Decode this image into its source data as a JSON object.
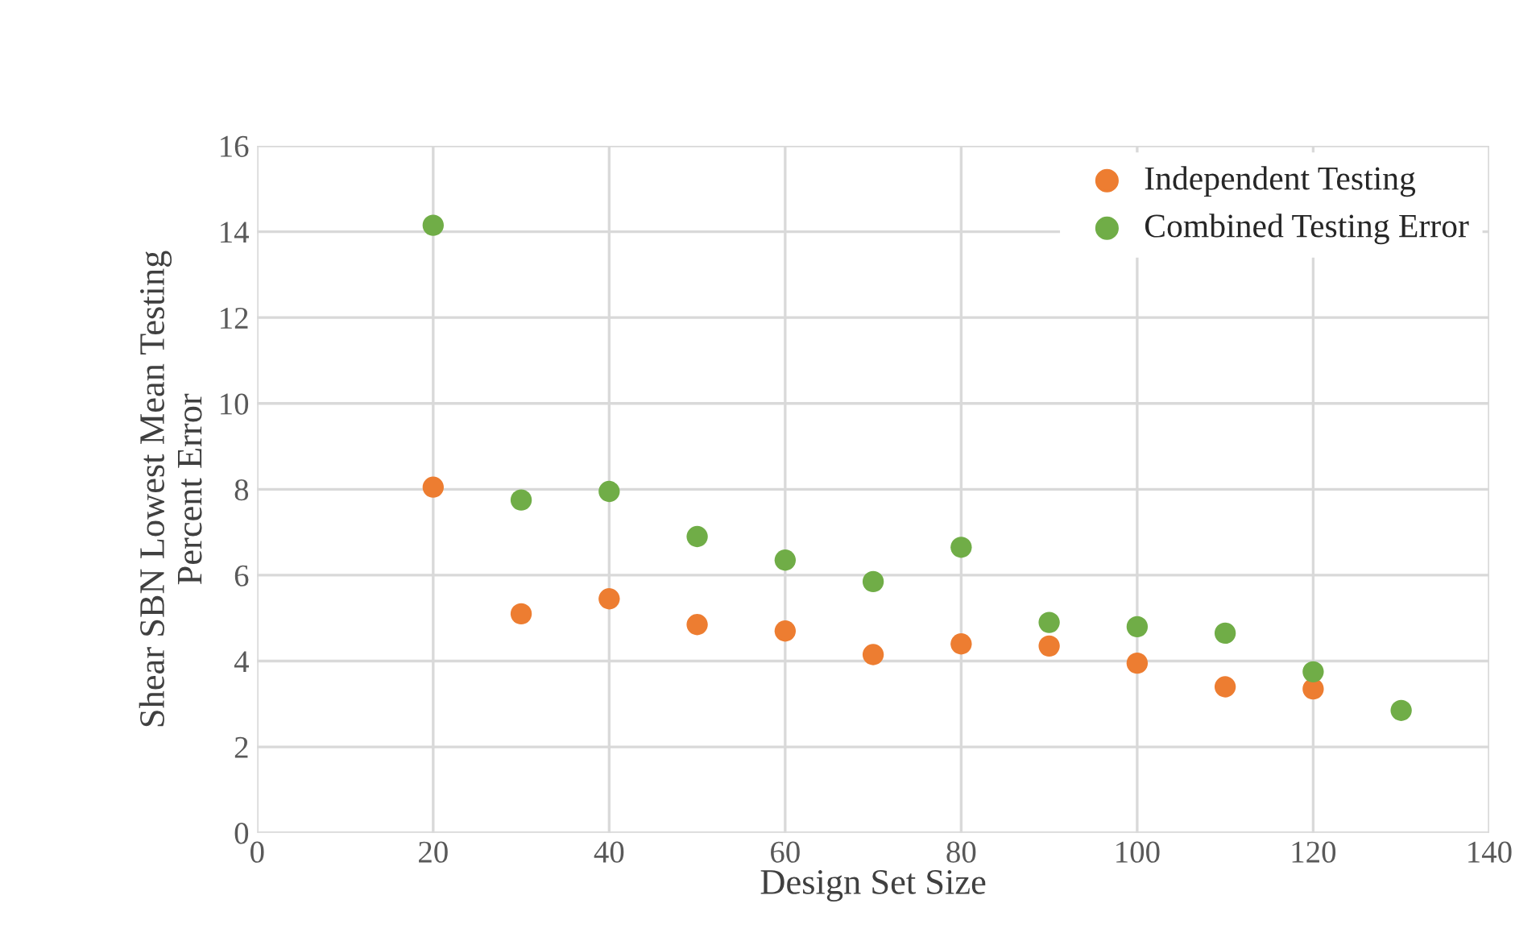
{
  "chart_data": {
    "type": "scatter",
    "xlabel": "Design Set Size",
    "ylabel": "Shear SBN Lowest Mean Testing\nPercent Error",
    "x": [
      20,
      30,
      40,
      50,
      60,
      70,
      80,
      90,
      100,
      110,
      120,
      130
    ],
    "series": [
      {
        "name": "Independent Testing",
        "color": "#ed7d31",
        "values": [
          8.05,
          5.1,
          5.45,
          4.85,
          4.7,
          4.15,
          4.4,
          4.35,
          3.95,
          3.4,
          3.35,
          null
        ]
      },
      {
        "name": "Combined Testing Error",
        "color": "#70ad47",
        "values": [
          14.15,
          7.75,
          7.95,
          6.9,
          6.35,
          5.85,
          6.65,
          4.9,
          4.8,
          4.65,
          3.75,
          2.85
        ]
      }
    ],
    "xlim": [
      0,
      140
    ],
    "xticks": [
      0,
      20,
      40,
      60,
      80,
      100,
      120,
      140
    ],
    "ylim": [
      0,
      16
    ],
    "yticks": [
      0,
      2,
      4,
      6,
      8,
      10,
      12,
      14,
      16
    ],
    "grid": true,
    "legend": "top right",
    "marker": "circle"
  }
}
